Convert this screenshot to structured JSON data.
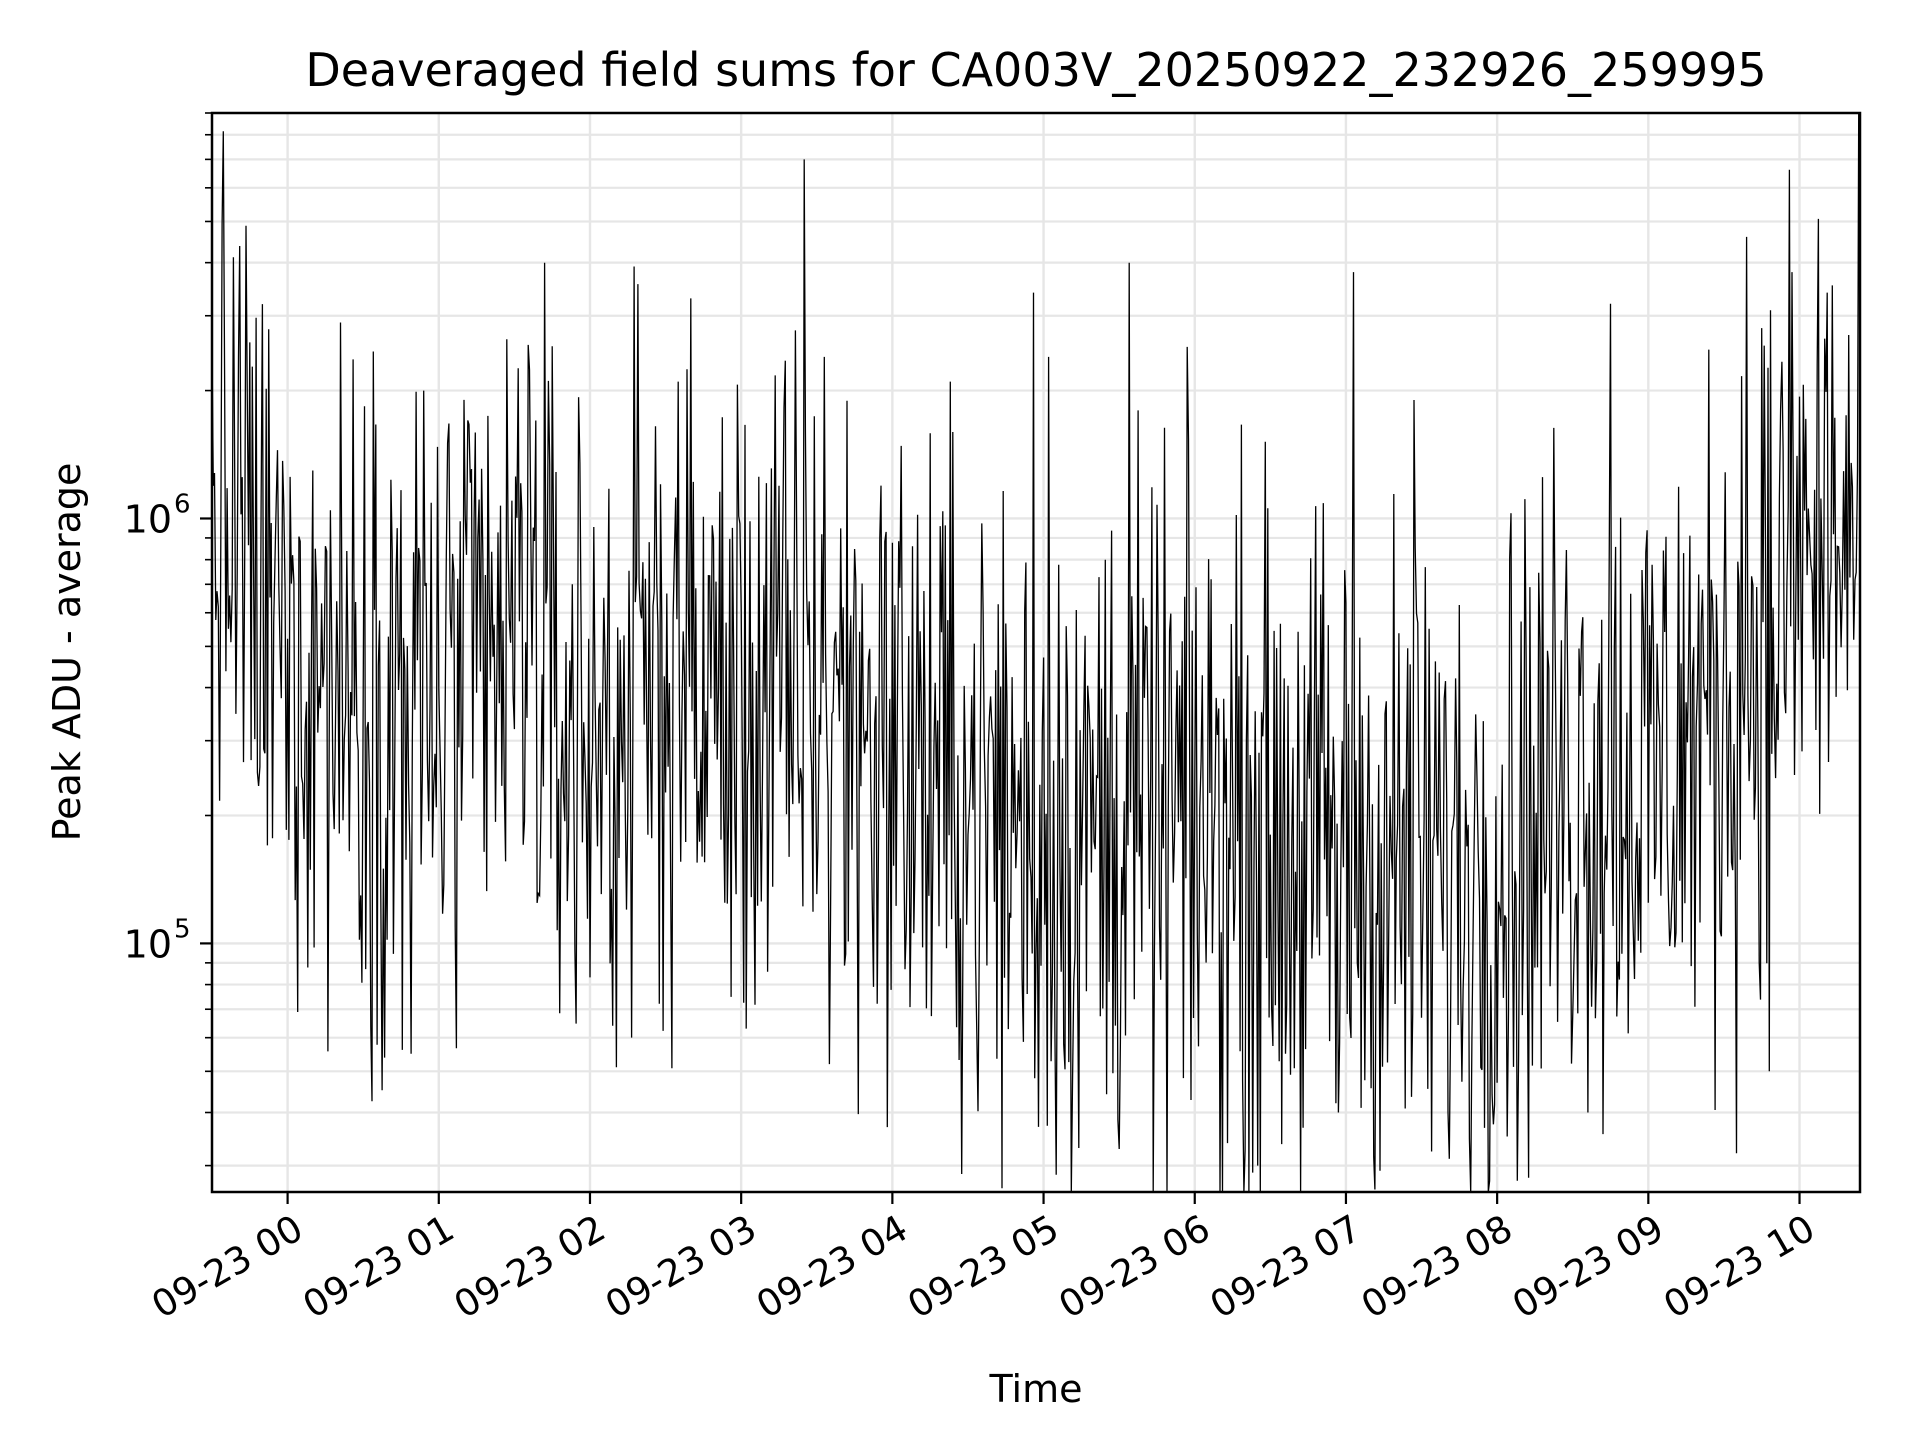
{
  "chart_data": {
    "type": "line",
    "title": "Deaveraged field sums for CA003V_20250922_232926_259995",
    "xlabel": "Time",
    "ylabel": "Peak ADU - average",
    "yscale": "log",
    "ylim": [
      26000,
      9000000
    ],
    "grid": true,
    "line_color": "#000000",
    "grid_color": "#e6e6e6",
    "x_unit": "hours since 09-23 00:00",
    "xlim": [
      -0.5,
      10.4
    ],
    "xticks": [
      {
        "value": 0,
        "label": "09-23 00"
      },
      {
        "value": 1,
        "label": "09-23 01"
      },
      {
        "value": 2,
        "label": "09-23 02"
      },
      {
        "value": 3,
        "label": "09-23 03"
      },
      {
        "value": 4,
        "label": "09-23 04"
      },
      {
        "value": 5,
        "label": "09-23 05"
      },
      {
        "value": 6,
        "label": "09-23 06"
      },
      {
        "value": 7,
        "label": "09-23 07"
      },
      {
        "value": 8,
        "label": "09-23 08"
      },
      {
        "value": 9,
        "label": "09-23 09"
      },
      {
        "value": 10,
        "label": "09-23 10"
      }
    ],
    "yticks": [
      {
        "value": 100000,
        "base": "10",
        "exponent": "5"
      },
      {
        "value": 1000000,
        "base": "10",
        "exponent": "6"
      }
    ],
    "series": [
      {
        "name": "Deaveraged field sum",
        "points_per_hour": 120,
        "baseline_anchors": [
          [
            -0.5,
            1000000
          ],
          [
            -0.3,
            950000
          ],
          [
            -0.2,
            600000
          ],
          [
            0.0,
            500000
          ],
          [
            0.5,
            400000
          ],
          [
            1.0,
            350000
          ],
          [
            1.5,
            480000
          ],
          [
            1.6,
            850000
          ],
          [
            1.7,
            350000
          ],
          [
            2.0,
            300000
          ],
          [
            2.5,
            450000
          ],
          [
            3.0,
            350000
          ],
          [
            3.5,
            400000
          ],
          [
            4.0,
            300000
          ],
          [
            4.5,
            220000
          ],
          [
            5.0,
            180000
          ],
          [
            6.0,
            200000
          ],
          [
            7.0,
            160000
          ],
          [
            7.8,
            140000
          ],
          [
            8.5,
            250000
          ],
          [
            9.0,
            250000
          ],
          [
            9.5,
            350000
          ],
          [
            10.0,
            800000
          ],
          [
            10.4,
            900000
          ]
        ],
        "spikes": [
          [
            0.9,
            2000000
          ],
          [
            1.7,
            4000000
          ],
          [
            2.58,
            2100000
          ],
          [
            3.42,
            7000000
          ],
          [
            3.55,
            2400000
          ],
          [
            4.38,
            2100000
          ],
          [
            4.93,
            3400000
          ],
          [
            5.57,
            4000000
          ],
          [
            5.03,
            2400000
          ],
          [
            7.05,
            3800000
          ],
          [
            7.45,
            1900000
          ],
          [
            8.75,
            3200000
          ],
          [
            9.65,
            4600000
          ],
          [
            9.95,
            3800000
          ],
          [
            10.18,
            3400000
          ],
          [
            0.82,
            55000
          ],
          [
            5.23,
            33000
          ],
          [
            4.97,
            37000
          ],
          [
            6.95,
            40000
          ],
          [
            8.0,
            47000
          ],
          [
            9.8,
            50000
          ],
          [
            2.15,
            64000
          ],
          [
            3.58,
            52000
          ],
          [
            6.6,
            55000
          ]
        ],
        "scatter_decades": 0.4
      }
    ]
  }
}
